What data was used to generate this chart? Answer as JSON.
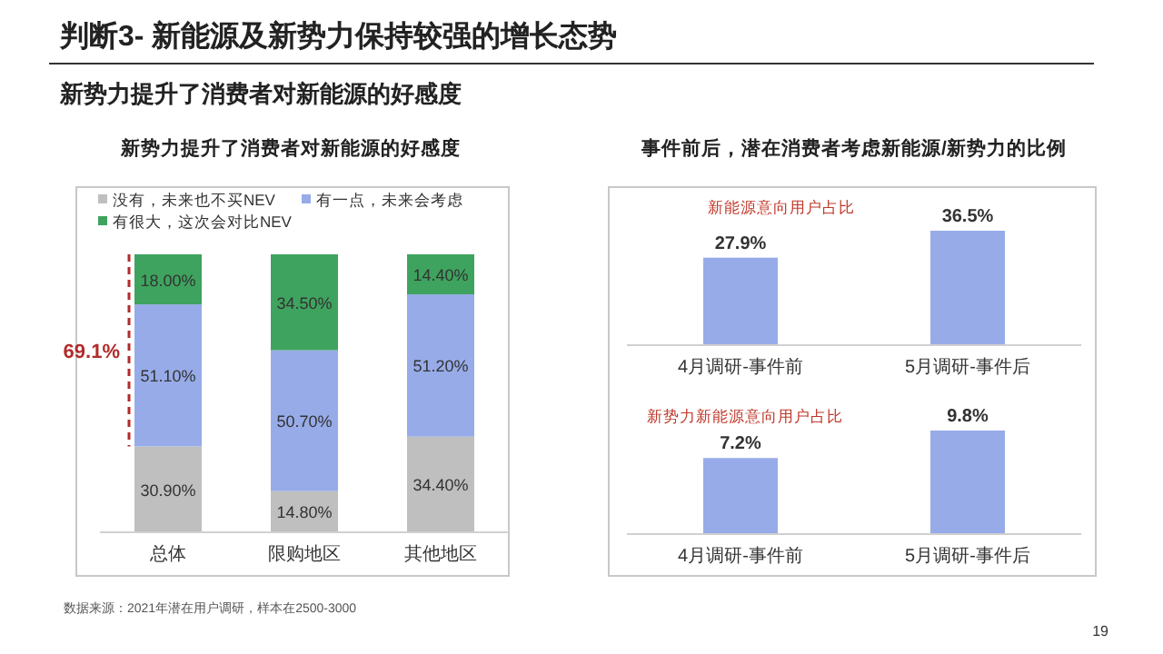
{
  "chart_data": [
    {
      "type": "bar",
      "stacked": true,
      "title": "新势力提升了消费者对新能源的好感度",
      "categories": [
        "总体",
        "限购地区",
        "其他地区"
      ],
      "series": [
        {
          "name": "没有，未来也不买NEV",
          "color": "#bfbfbf",
          "values": [
            30.9,
            14.8,
            34.4
          ],
          "value_labels": [
            "30.90%",
            "14.80%",
            "34.40%"
          ]
        },
        {
          "name": "有一点，未来会考虑",
          "color": "#97abe8",
          "values": [
            51.1,
            50.7,
            51.2
          ],
          "value_labels": [
            "51.10%",
            "50.70%",
            "51.20%"
          ]
        },
        {
          "name": "有很大，这次会对比NEV",
          "color": "#3ea35e",
          "values": [
            18.0,
            34.5,
            14.4
          ],
          "value_labels": [
            "18.00%",
            "34.50%",
            "14.40%"
          ]
        }
      ],
      "tick_labels": "x",
      "legend": "top",
      "annotations": [
        "判断3- 新能源及新势力保持较强的增长态势",
        "新势力提升了消费者对新能源的好感度",
        "数据来源：2021年潜在用户调研，样本在2500-3000",
        "19",
        "69.1%"
      ]
    },
    {
      "type": "bar",
      "title": "事件前后，潜在消费者考虑新能源/新势力的比例",
      "subtitle": "新能源意向用户占比",
      "categories": [
        "4月调研-事件前",
        "5月调研-事件后"
      ],
      "values": [
        27.9,
        36.5
      ],
      "value_labels": [
        "27.9%",
        "36.5%"
      ],
      "color": "#97abe8",
      "tick_labels": "x"
    },
    {
      "type": "bar",
      "subtitle": "新势力新能源意向用户占比",
      "categories": [
        "4月调研-事件前",
        "5月调研-事件后"
      ],
      "values": [
        7.2,
        9.8
      ],
      "value_labels": [
        "7.2%",
        "9.8%"
      ],
      "color": "#97abe8",
      "tick_labels": "x"
    }
  ]
}
